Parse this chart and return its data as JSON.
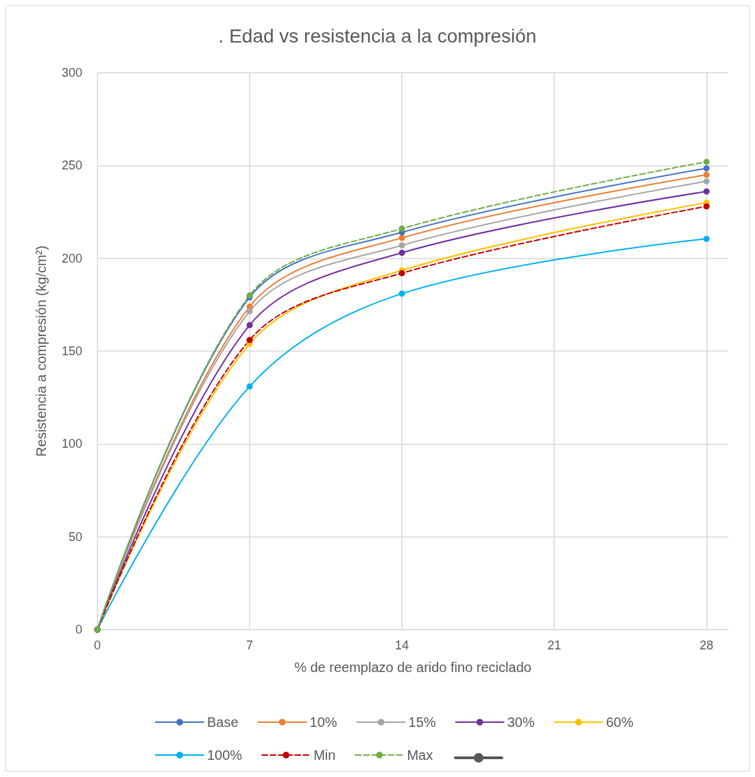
{
  "chart_data": {
    "type": "line",
    "title": ". Edad vs resistencia a la compresión",
    "xlabel": "% de reemplazo de arido fino reciclado",
    "ylabel": "Resistencia a compresión (kg/cm²)",
    "x": [
      0,
      7,
      14,
      28
    ],
    "xlim": [
      0,
      29
    ],
    "xticks": [
      0,
      7,
      14,
      21,
      28
    ],
    "ylim": [
      0,
      300
    ],
    "yticks": [
      0,
      50,
      100,
      150,
      200,
      250,
      300
    ],
    "grid": true,
    "legend": "bottom",
    "marker": "circle",
    "series": [
      {
        "name": "Base",
        "color": "#4472c4",
        "values": [
          0,
          179,
          214,
          248.5
        ]
      },
      {
        "name": "10%",
        "color": "#ed7d31",
        "values": [
          0,
          174,
          211,
          245
        ]
      },
      {
        "name": "15%",
        "color": "#a5a5a5",
        "values": [
          0,
          171.5,
          207,
          241.5
        ]
      },
      {
        "name": "30%",
        "color": "#7030a0",
        "values": [
          0,
          164,
          203,
          236
        ]
      },
      {
        "name": "60%",
        "color": "#ffc000",
        "values": [
          0,
          154,
          193.5,
          230
        ]
      },
      {
        "name": "100%",
        "color": "#00b0f0",
        "values": [
          0,
          131,
          181,
          210.5
        ]
      },
      {
        "name": "Min",
        "color": "#c00000",
        "line_style": "dashed",
        "values": [
          0,
          156,
          192,
          228
        ]
      },
      {
        "name": "Max",
        "color": "#70ad47",
        "line_style": "dashed",
        "values": [
          0,
          180,
          216,
          252
        ]
      }
    ]
  }
}
